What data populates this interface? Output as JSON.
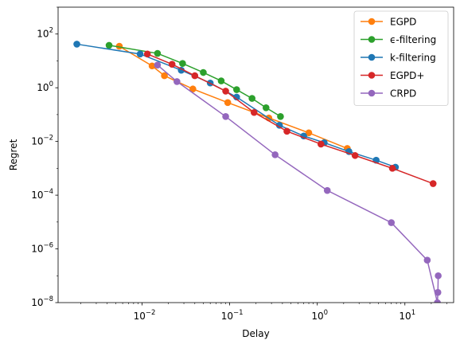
{
  "chart_data": {
    "type": "line",
    "title": "",
    "xlabel": "Delay",
    "ylabel": "Regret",
    "xscale": "log",
    "yscale": "log",
    "xlim": [
      0.0011,
      36
    ],
    "ylim": [
      1e-08,
      1000
    ],
    "x_ticks": [
      {
        "value": 0.01,
        "base": "10",
        "exp": "−2"
      },
      {
        "value": 0.1,
        "base": "10",
        "exp": "−1"
      },
      {
        "value": 1,
        "base": "10",
        "exp": "0"
      },
      {
        "value": 10,
        "base": "10",
        "exp": "1"
      }
    ],
    "y_ticks": [
      {
        "value": 1e-08,
        "base": "10",
        "exp": "−8"
      },
      {
        "value": 1e-06,
        "base": "10",
        "exp": "−6"
      },
      {
        "value": 0.0001,
        "base": "10",
        "exp": "−4"
      },
      {
        "value": 0.01,
        "base": "10",
        "exp": "−2"
      },
      {
        "value": 1,
        "base": "10",
        "exp": "0"
      },
      {
        "value": 100,
        "base": "10",
        "exp": "2"
      }
    ],
    "grid": false,
    "legend_position": "top-right",
    "series": [
      {
        "name": "EGPD",
        "color": "#ff7f0e",
        "points": [
          [
            0.0055,
            35
          ],
          [
            0.013,
            6.5
          ],
          [
            0.018,
            2.8
          ],
          [
            0.038,
            0.9
          ],
          [
            0.095,
            0.28
          ],
          [
            0.28,
            0.075
          ],
          [
            0.8,
            0.021
          ],
          [
            2.2,
            0.0055
          ]
        ]
      },
      {
        "name": "ϵ-filtering",
        "color": "#2ca02c",
        "points": [
          [
            0.0042,
            38
          ],
          [
            0.015,
            19
          ],
          [
            0.029,
            8
          ],
          [
            0.05,
            3.7
          ],
          [
            0.08,
            1.8
          ],
          [
            0.12,
            0.85
          ],
          [
            0.18,
            0.4
          ],
          [
            0.26,
            0.18
          ],
          [
            0.38,
            0.085
          ]
        ]
      },
      {
        "name": "k-filtering",
        "color": "#1f77b4",
        "points": [
          [
            0.0018,
            42
          ],
          [
            0.0095,
            18
          ],
          [
            0.028,
            4.5
          ],
          [
            0.06,
            1.5
          ],
          [
            0.12,
            0.45
          ],
          [
            0.37,
            0.04
          ],
          [
            0.7,
            0.016
          ],
          [
            1.2,
            0.009
          ],
          [
            2.3,
            0.0042
          ],
          [
            4.7,
            0.002
          ],
          [
            7.8,
            0.0011
          ]
        ]
      },
      {
        "name": "EGPD+",
        "color": "#d62728",
        "points": [
          [
            0.0115,
            18
          ],
          [
            0.022,
            7.5
          ],
          [
            0.04,
            2.8
          ],
          [
            0.09,
            0.75
          ],
          [
            0.19,
            0.12
          ],
          [
            0.45,
            0.024
          ],
          [
            1.1,
            0.008
          ],
          [
            2.7,
            0.003
          ],
          [
            7.2,
            0.001
          ],
          [
            21,
            0.00027
          ]
        ]
      },
      {
        "name": "CRPD",
        "color": "#9467bd",
        "points": [
          [
            0.015,
            7
          ],
          [
            0.025,
            1.7
          ],
          [
            0.09,
            0.085
          ],
          [
            0.33,
            0.0032
          ],
          [
            1.3,
            0.00015
          ],
          [
            7,
            9.5e-06
          ],
          [
            18,
            3.8e-07
          ],
          [
            23.5,
            1e-08
          ],
          [
            23.8,
            2.4e-08
          ],
          [
            24,
            1e-07
          ]
        ]
      }
    ]
  }
}
